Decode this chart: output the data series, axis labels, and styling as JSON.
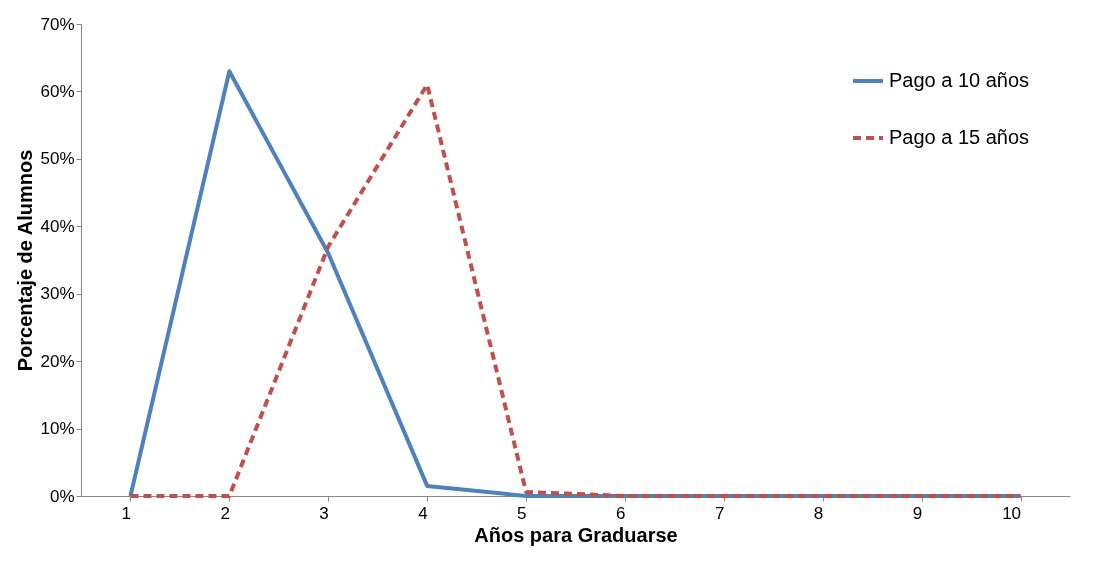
{
  "chart_data": {
    "type": "line",
    "categories": [
      "1",
      "2",
      "3",
      "4",
      "5",
      "6",
      "7",
      "8",
      "9",
      "10"
    ],
    "series": [
      {
        "name": "Pago a 10 años",
        "color": "#4f81bd",
        "line_style": "solid",
        "values": [
          0,
          63,
          36,
          1.5,
          0,
          0,
          0,
          0,
          0,
          0
        ]
      },
      {
        "name": "Pago a 15 años",
        "color": "#c0504d",
        "line_style": "dashed",
        "values": [
          0,
          0,
          37,
          61,
          0.6,
          0,
          0,
          0,
          0,
          0
        ]
      }
    ],
    "xlabel": "Años para Graduarse",
    "ylabel": "Porcentaje de Alumnos",
    "ylim": [
      0,
      70
    ],
    "yticks": [
      {
        "value": 0,
        "label": "0%"
      },
      {
        "value": 10,
        "label": "10%"
      },
      {
        "value": 20,
        "label": "20%"
      },
      {
        "value": 30,
        "label": "30%"
      },
      {
        "value": 40,
        "label": "40%"
      },
      {
        "value": 50,
        "label": "50%"
      },
      {
        "value": 60,
        "label": "60%"
      },
      {
        "value": 70,
        "label": "70%"
      }
    ],
    "legend": "top right",
    "grid": false,
    "marker": "none"
  }
}
